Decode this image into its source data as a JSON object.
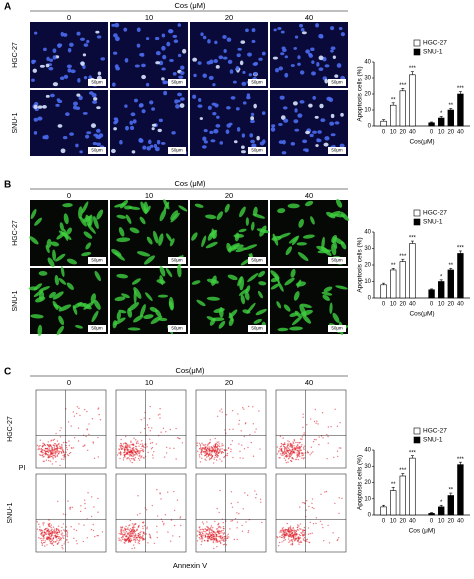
{
  "panels": [
    {
      "label": "A",
      "header": "Cos (μM)",
      "columns": [
        "0",
        "10",
        "20",
        "40"
      ],
      "rows": [
        "HGC-27",
        "SNU-1"
      ],
      "scale_bar": "50μm",
      "chart": {
        "type": "bar",
        "y_label": "Apoptosis cells (%)",
        "x_label": "Cos(μM)",
        "categories": [
          "0",
          "10",
          "20",
          "40"
        ],
        "series": [
          {
            "name": "HGC-27",
            "color": "#ffffff",
            "values": [
              3,
              13,
              22,
              32
            ],
            "errors": [
              1,
              1.5,
              1.5,
              2
            ],
            "significance": [
              null,
              "**",
              "***",
              "***"
            ]
          },
          {
            "name": "SNU-1",
            "color": "#000000",
            "values": [
              2,
              5,
              10,
              20
            ],
            "errors": [
              0.5,
              1,
              1,
              1.5
            ],
            "significance": [
              null,
              "*",
              "**",
              "***"
            ]
          }
        ],
        "ylim": [
          0,
          40
        ],
        "yticks": [
          0,
          10,
          20,
          30,
          40
        ]
      }
    },
    {
      "label": "B",
      "header": "Cos (μM)",
      "columns": [
        "0",
        "10",
        "20",
        "40"
      ],
      "rows": [
        "HGC-27",
        "SNU-1"
      ],
      "scale_bar": "50μm",
      "chart": {
        "type": "bar",
        "y_label": "Apoptosis cells (%)",
        "x_label": "Cos(μM)",
        "categories": [
          "0",
          "10",
          "20",
          "40"
        ],
        "series": [
          {
            "name": "HGC-27",
            "color": "#ffffff",
            "values": [
              8,
              17,
              22,
              33
            ],
            "errors": [
              1,
              1,
              1.5,
              1.5
            ],
            "significance": [
              null,
              "**",
              "***",
              "***"
            ]
          },
          {
            "name": "SNU-1",
            "color": "#000000",
            "values": [
              5,
              10,
              17,
              27
            ],
            "errors": [
              0.5,
              1,
              1,
              1.5
            ],
            "significance": [
              null,
              "*",
              "**",
              "***"
            ]
          }
        ],
        "ylim": [
          0,
          40
        ],
        "yticks": [
          0,
          10,
          20,
          30,
          40
        ]
      }
    },
    {
      "label": "C",
      "header": "Cos(μM)",
      "columns": [
        "0",
        "10",
        "20",
        "40"
      ],
      "rows": [
        "HGC-27",
        "SNU-1"
      ],
      "y_label": "PI",
      "x_label": "Annexin V",
      "chart": {
        "type": "bar",
        "y_label": "Apoptosis cells (%)",
        "x_label": "Cos (μM)",
        "categories": [
          "0",
          "10",
          "20",
          "40"
        ],
        "series": [
          {
            "name": "HGC-27",
            "color": "#ffffff",
            "values": [
              5,
              15,
              24,
              35
            ],
            "errors": [
              1,
              2,
              1.5,
              1.5
            ],
            "significance": [
              null,
              "**",
              "***",
              "***"
            ]
          },
          {
            "name": "SNU-1",
            "color": "#000000",
            "values": [
              1,
              5,
              12,
              31
            ],
            "errors": [
              0.5,
              1,
              1.5,
              1.5
            ],
            "significance": [
              null,
              "*",
              "**",
              "***"
            ]
          }
        ],
        "ylim": [
          0,
          40
        ],
        "yticks": [
          0,
          10,
          20,
          30,
          40
        ]
      }
    }
  ]
}
